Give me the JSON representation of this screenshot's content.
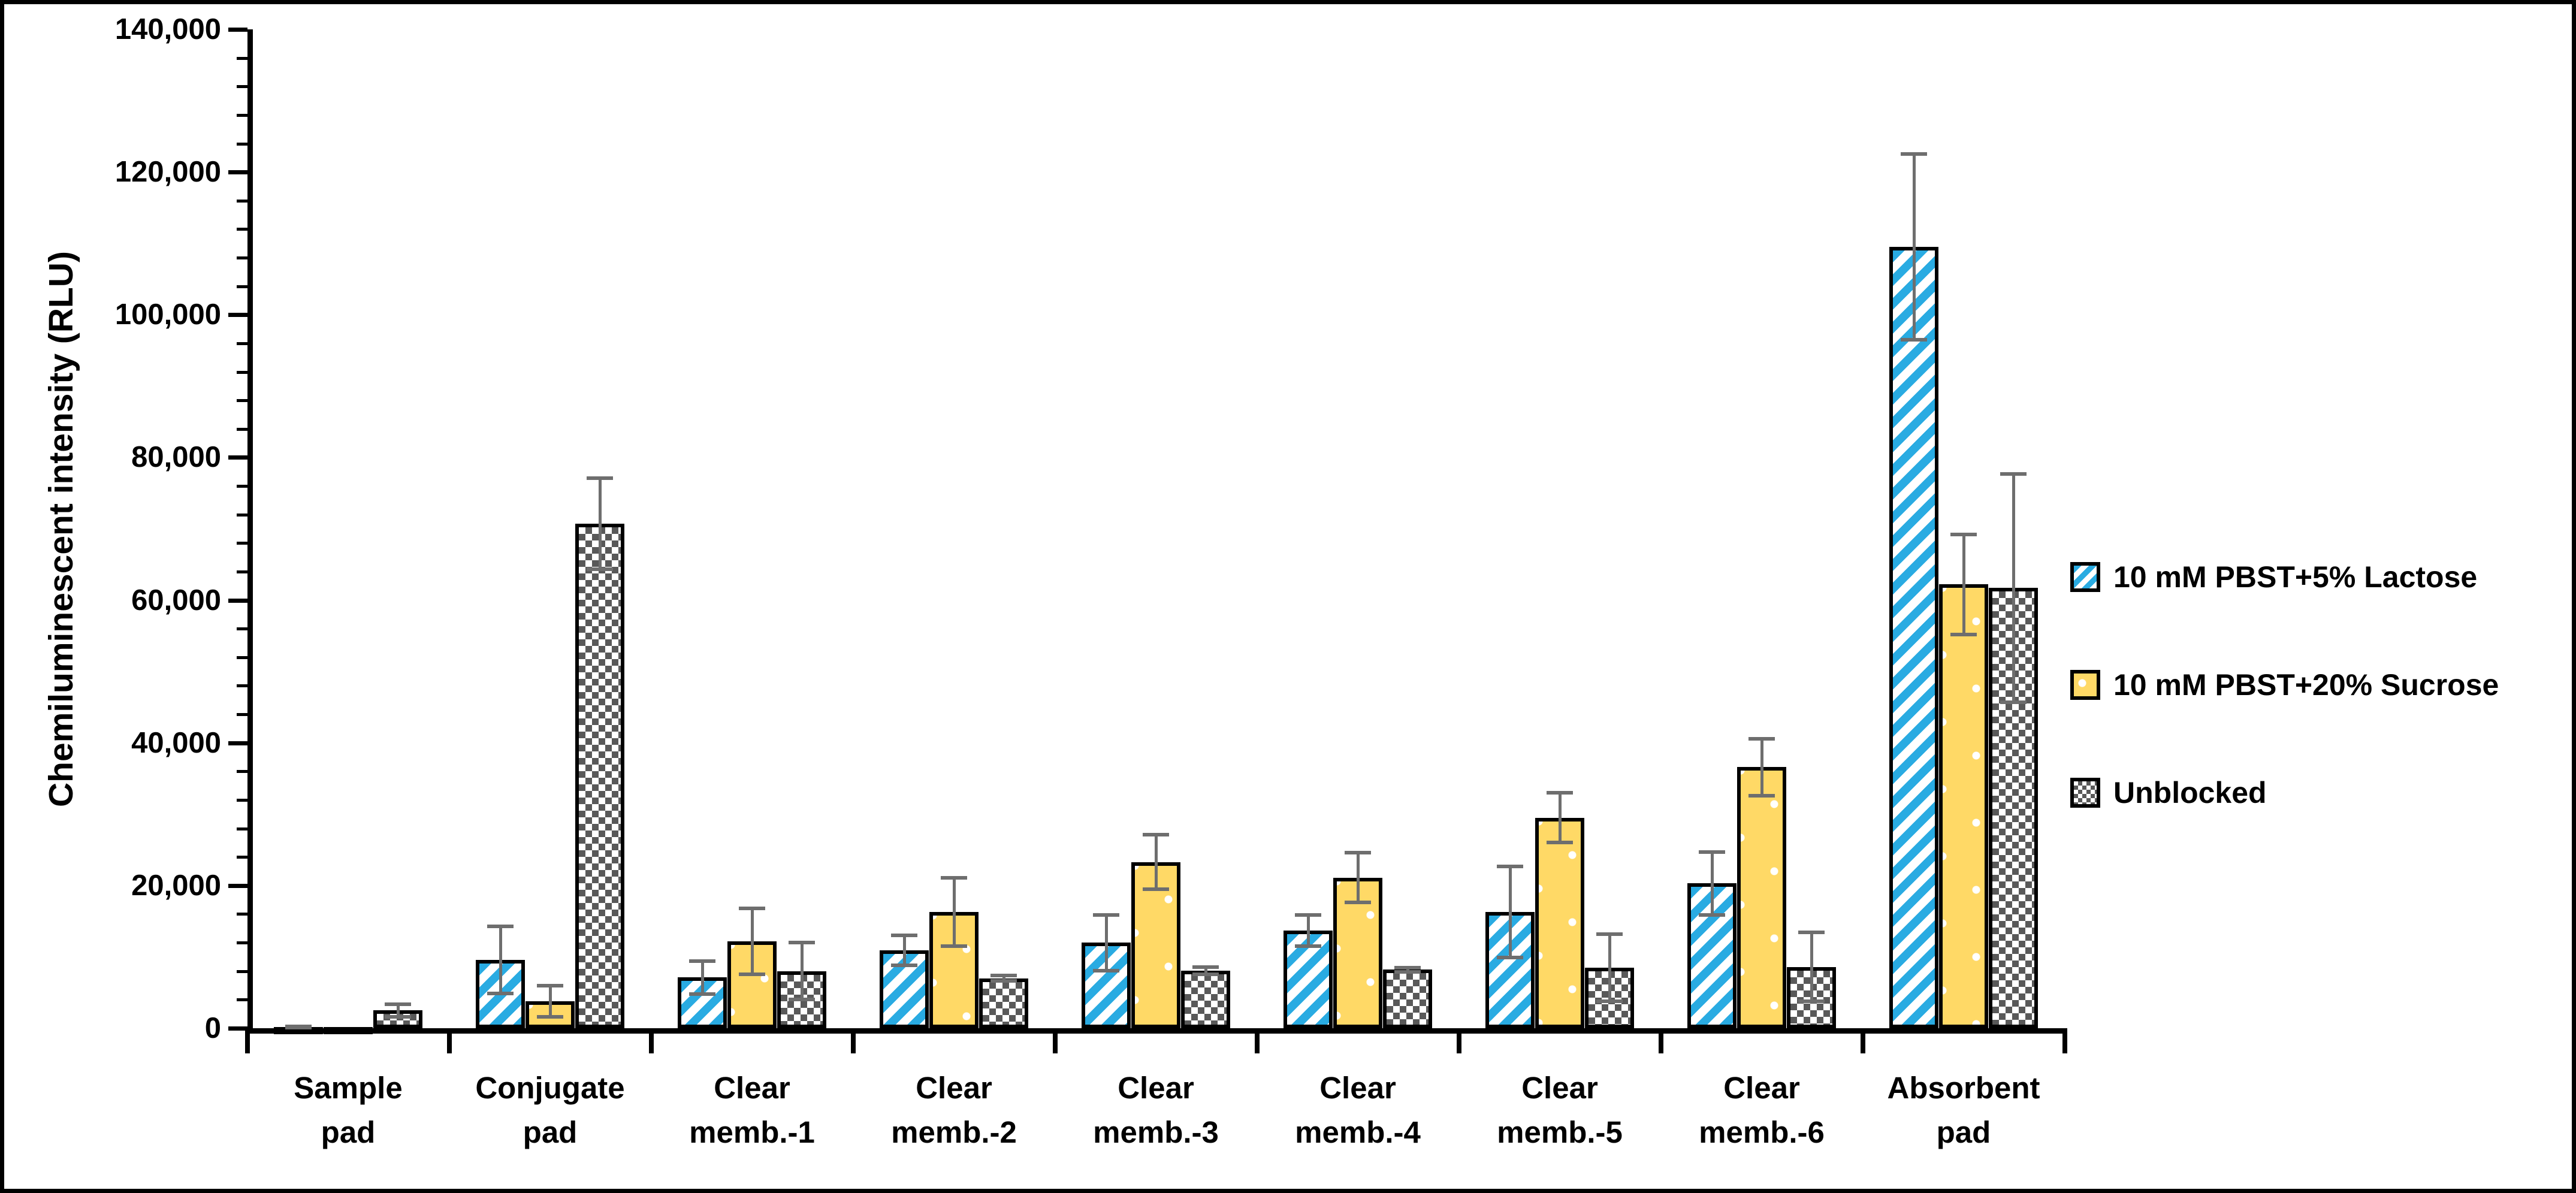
{
  "figure": {
    "background": "#ffffff",
    "border_color": "#000000"
  },
  "y_axis": {
    "title": "Chemiluminescent intensity (RLU)",
    "max": 140000,
    "min": 0,
    "major_step": 20000,
    "minor_step": 4000,
    "tick_labels_top_to_bottom": [
      "140,000",
      "120,000",
      "100,000",
      "80,000",
      "60,000",
      "40,000",
      "20,000",
      "0"
    ]
  },
  "legend": {
    "position": "right",
    "items": [
      {
        "label": "10 mM PBST+5% Lactose",
        "series": "lactose",
        "swatch": "blue-diagonal-stripes"
      },
      {
        "label": "10 mM PBST+20% Sucrose",
        "series": "sucrose",
        "swatch": "yellow-white-dots"
      },
      {
        "label": "Unblocked",
        "series": "unblocked",
        "swatch": "gray-checkerboard"
      }
    ]
  },
  "colors": {
    "lactose_blue": "#29ABE2",
    "sucrose_yellow": "#FFD966",
    "unblocked_checker_dark": "#595959",
    "error_bar_gray": "#6E6E6E",
    "axis_black": "#000000"
  },
  "chart_data": {
    "type": "bar",
    "title": "",
    "xlabel": "",
    "ylabel": "Chemiluminescent intensity (RLU)",
    "ylim": [
      0,
      140000
    ],
    "grid": false,
    "legend_position": "right",
    "categories": [
      [
        "Sample",
        "pad"
      ],
      [
        "Conjugate",
        "pad"
      ],
      [
        "Clear",
        "memb.-1"
      ],
      [
        "Clear",
        "memb.-2"
      ],
      [
        "Clear",
        "memb.-3"
      ],
      [
        "Clear",
        "memb.-4"
      ],
      [
        "Clear",
        "memb.-5"
      ],
      [
        "Clear",
        "memb.-6"
      ],
      [
        "Absorbent",
        "pad"
      ]
    ],
    "series": [
      {
        "name": "10 mM PBST+5% Lactose",
        "pattern": "diagonal-stripes",
        "color": "#29ABE2",
        "values": [
          150,
          9600,
          7100,
          10900,
          12000,
          13700,
          16300,
          20300,
          109500
        ],
        "errors": [
          100,
          4700,
          2300,
          2100,
          3900,
          2200,
          6400,
          4400,
          13000
        ]
      },
      {
        "name": "10 mM PBST+20% Sucrose",
        "pattern": "white-dots",
        "color": "#FFD966",
        "values": [
          100,
          3800,
          12200,
          16300,
          23300,
          21100,
          29500,
          36600,
          62200
        ],
        "errors": [
          0,
          2200,
          4600,
          4800,
          3800,
          3500,
          3500,
          4000,
          7000
        ]
      },
      {
        "name": "Unblocked",
        "pattern": "checkerboard",
        "color": "#595959",
        "values": [
          2500,
          70700,
          8000,
          7000,
          8100,
          8200,
          8500,
          8600,
          61700
        ],
        "errors": [
          900,
          6400,
          4000,
          400,
          500,
          300,
          4700,
          4800,
          16000
        ]
      }
    ]
  }
}
